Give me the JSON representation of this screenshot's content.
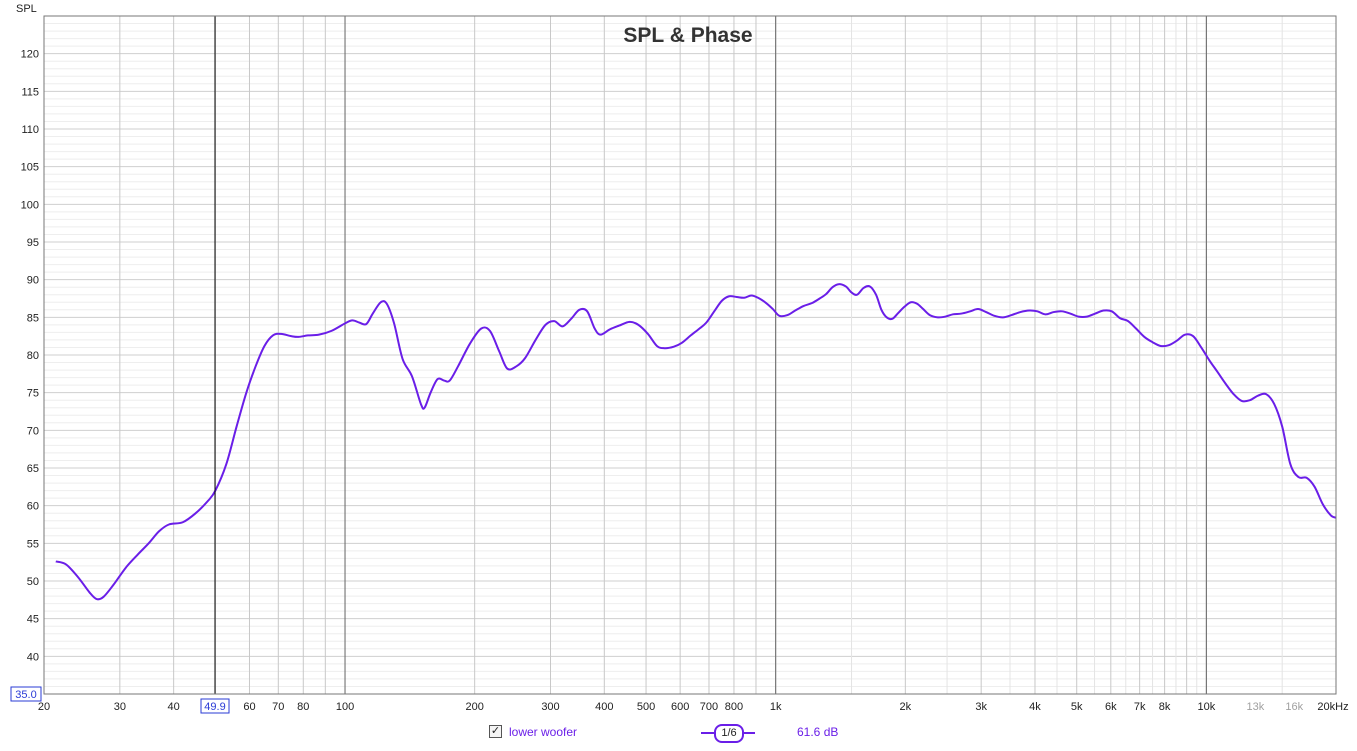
{
  "chart_data": {
    "type": "line",
    "title": "SPL & Phase",
    "ylabel": "SPL",
    "xscale": "log",
    "xlim": [
      20,
      20000
    ],
    "ylim": [
      35,
      125
    ],
    "yticks": [
      40,
      45,
      50,
      55,
      60,
      65,
      70,
      75,
      80,
      85,
      90,
      95,
      100,
      105,
      110,
      115,
      120
    ],
    "ytick_labels": [
      "40",
      "45",
      "50",
      "55",
      "60",
      "65",
      "70",
      "75",
      "80",
      "85",
      "90",
      "95",
      "100",
      "105",
      "110",
      "115",
      "120"
    ],
    "ymin_label": "35.0",
    "xticks": [
      {
        "f": 20,
        "label": "20"
      },
      {
        "f": 30,
        "label": "30"
      },
      {
        "f": 40,
        "label": "40"
      },
      {
        "f": 60,
        "label": "60"
      },
      {
        "f": 70,
        "label": "70"
      },
      {
        "f": 80,
        "label": "80"
      },
      {
        "f": 100,
        "label": "100"
      },
      {
        "f": 200,
        "label": "200"
      },
      {
        "f": 300,
        "label": "300"
      },
      {
        "f": 400,
        "label": "400"
      },
      {
        "f": 500,
        "label": "500"
      },
      {
        "f": 600,
        "label": "600"
      },
      {
        "f": 700,
        "label": "700"
      },
      {
        "f": 800,
        "label": "800"
      },
      {
        "f": 1000,
        "label": "1k"
      },
      {
        "f": 2000,
        "label": "2k"
      },
      {
        "f": 3000,
        "label": "3k"
      },
      {
        "f": 4000,
        "label": "4k"
      },
      {
        "f": 5000,
        "label": "5k"
      },
      {
        "f": 6000,
        "label": "6k"
      },
      {
        "f": 7000,
        "label": "7k"
      },
      {
        "f": 8000,
        "label": "8k"
      },
      {
        "f": 10000,
        "label": "10k"
      },
      {
        "f": 13000,
        "label": "13k",
        "dim": true
      },
      {
        "f": 16000,
        "label": "16k",
        "dim": true
      },
      {
        "f": 20000,
        "label": "20kHz"
      }
    ],
    "cursor": {
      "f": 49.9,
      "label": "49.9"
    },
    "grid": true,
    "series": [
      {
        "name": "lower woofer",
        "color": "#6a1ee8",
        "points": [
          [
            21.3,
            52.6
          ],
          [
            22.5,
            52.2
          ],
          [
            24,
            50.5
          ],
          [
            25.5,
            48.5
          ],
          [
            26.5,
            47.6
          ],
          [
            27.5,
            47.9
          ],
          [
            29,
            49.5
          ],
          [
            31,
            51.8
          ],
          [
            33,
            53.5
          ],
          [
            35,
            55.0
          ],
          [
            37,
            56.6
          ],
          [
            39,
            57.5
          ],
          [
            42,
            57.8
          ],
          [
            45,
            59.0
          ],
          [
            48,
            60.6
          ],
          [
            50,
            62.0
          ],
          [
            53,
            65.5
          ],
          [
            56,
            70.5
          ],
          [
            59,
            75.0
          ],
          [
            62,
            78.5
          ],
          [
            65,
            81.2
          ],
          [
            68,
            82.6
          ],
          [
            71,
            82.8
          ],
          [
            75,
            82.5
          ],
          [
            78,
            82.4
          ],
          [
            82,
            82.6
          ],
          [
            87,
            82.7
          ],
          [
            93,
            83.2
          ],
          [
            100,
            84.2
          ],
          [
            104,
            84.6
          ],
          [
            108,
            84.3
          ],
          [
            112,
            84.1
          ],
          [
            116,
            85.5
          ],
          [
            121,
            87.0
          ],
          [
            125,
            86.8
          ],
          [
            130,
            84.2
          ],
          [
            136,
            79.5
          ],
          [
            143,
            77.2
          ],
          [
            150,
            73.5
          ],
          [
            153,
            73.0
          ],
          [
            158,
            75.0
          ],
          [
            164,
            76.8
          ],
          [
            170,
            76.6
          ],
          [
            175,
            76.6
          ],
          [
            183,
            78.5
          ],
          [
            195,
            81.5
          ],
          [
            207,
            83.5
          ],
          [
            217,
            83.2
          ],
          [
            228,
            80.5
          ],
          [
            238,
            78.2
          ],
          [
            250,
            78.5
          ],
          [
            262,
            79.6
          ],
          [
            277,
            82.0
          ],
          [
            292,
            84.0
          ],
          [
            306,
            84.5
          ],
          [
            320,
            83.8
          ],
          [
            335,
            84.8
          ],
          [
            350,
            86.0
          ],
          [
            365,
            85.8
          ],
          [
            380,
            83.5
          ],
          [
            392,
            82.7
          ],
          [
            412,
            83.4
          ],
          [
            433,
            83.9
          ],
          [
            458,
            84.4
          ],
          [
            480,
            84.0
          ],
          [
            505,
            82.8
          ],
          [
            530,
            81.2
          ],
          [
            552,
            80.9
          ],
          [
            580,
            81.1
          ],
          [
            605,
            81.6
          ],
          [
            635,
            82.6
          ],
          [
            665,
            83.5
          ],
          [
            690,
            84.3
          ],
          [
            720,
            85.8
          ],
          [
            750,
            87.2
          ],
          [
            780,
            87.8
          ],
          [
            812,
            87.7
          ],
          [
            845,
            87.6
          ],
          [
            878,
            87.9
          ],
          [
            910,
            87.6
          ],
          [
            950,
            86.9
          ],
          [
            985,
            86.1
          ],
          [
            1020,
            85.2
          ],
          [
            1065,
            85.3
          ],
          [
            1110,
            85.9
          ],
          [
            1160,
            86.5
          ],
          [
            1215,
            86.9
          ],
          [
            1265,
            87.5
          ],
          [
            1310,
            88.1
          ],
          [
            1355,
            89.0
          ],
          [
            1400,
            89.4
          ],
          [
            1455,
            89.1
          ],
          [
            1500,
            88.3
          ],
          [
            1545,
            88.0
          ],
          [
            1600,
            88.9
          ],
          [
            1655,
            89.1
          ],
          [
            1710,
            88.0
          ],
          [
            1760,
            86.0
          ],
          [
            1810,
            85.0
          ],
          [
            1865,
            84.8
          ],
          [
            1920,
            85.5
          ],
          [
            1990,
            86.4
          ],
          [
            2060,
            87.0
          ],
          [
            2130,
            86.8
          ],
          [
            2200,
            86.1
          ],
          [
            2280,
            85.3
          ],
          [
            2380,
            85.0
          ],
          [
            2480,
            85.1
          ],
          [
            2580,
            85.4
          ],
          [
            2700,
            85.5
          ],
          [
            2830,
            85.8
          ],
          [
            2950,
            86.1
          ],
          [
            3080,
            85.7
          ],
          [
            3220,
            85.2
          ],
          [
            3370,
            85.0
          ],
          [
            3530,
            85.3
          ],
          [
            3700,
            85.7
          ],
          [
            3880,
            85.9
          ],
          [
            4050,
            85.8
          ],
          [
            4230,
            85.4
          ],
          [
            4420,
            85.7
          ],
          [
            4620,
            85.8
          ],
          [
            4830,
            85.5
          ],
          [
            5050,
            85.1
          ],
          [
            5280,
            85.1
          ],
          [
            5520,
            85.5
          ],
          [
            5770,
            85.9
          ],
          [
            6030,
            85.8
          ],
          [
            6300,
            84.9
          ],
          [
            6580,
            84.5
          ],
          [
            6870,
            83.5
          ],
          [
            7180,
            82.4
          ],
          [
            7500,
            81.7
          ],
          [
            7830,
            81.2
          ],
          [
            8180,
            81.3
          ],
          [
            8540,
            81.9
          ],
          [
            8920,
            82.7
          ],
          [
            9320,
            82.5
          ],
          [
            9730,
            81.0
          ],
          [
            10160,
            79.3
          ],
          [
            10600,
            77.8
          ],
          [
            11080,
            76.2
          ],
          [
            11570,
            74.8
          ],
          [
            12080,
            73.9
          ],
          [
            12620,
            74.0
          ],
          [
            13180,
            74.6
          ],
          [
            13760,
            74.8
          ],
          [
            14370,
            73.5
          ],
          [
            15000,
            70.5
          ],
          [
            15670,
            65.5
          ],
          [
            16360,
            63.8
          ],
          [
            17090,
            63.7
          ],
          [
            17840,
            62.5
          ],
          [
            18630,
            60.2
          ],
          [
            19460,
            58.7
          ],
          [
            20000,
            58.4
          ]
        ]
      }
    ]
  },
  "legend": {
    "series_label": "lower woofer",
    "checked_mark": "✓",
    "smoothing_label": "1/6",
    "readout": "61.6 dB"
  }
}
